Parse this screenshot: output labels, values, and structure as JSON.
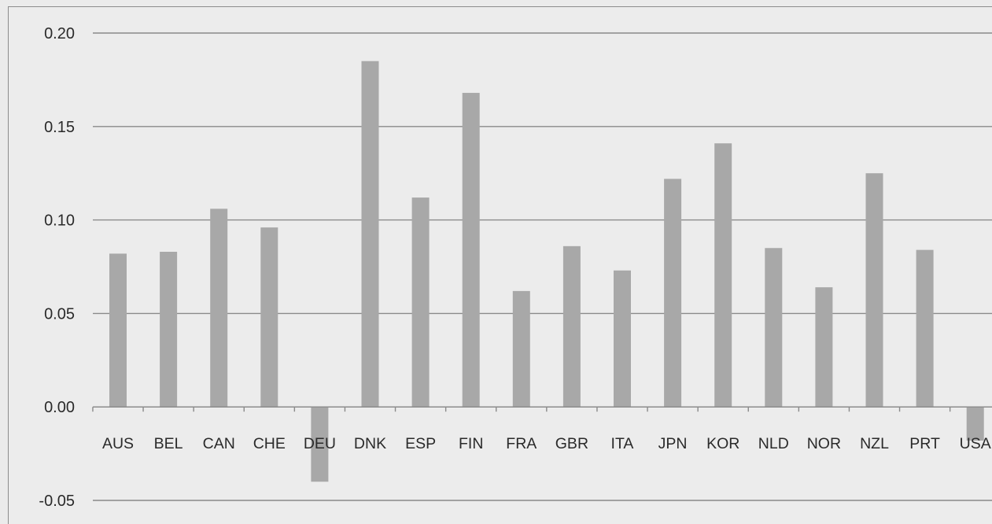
{
  "chart_data": {
    "type": "bar",
    "title": "",
    "xlabel": "",
    "ylabel": "",
    "categories": [
      "AUS",
      "BEL",
      "CAN",
      "CHE",
      "DEU",
      "DNK",
      "ESP",
      "FIN",
      "FRA",
      "GBR",
      "ITA",
      "JPN",
      "KOR",
      "NLD",
      "NOR",
      "NZL",
      "PRT",
      "USA"
    ],
    "values": [
      0.082,
      0.083,
      0.106,
      0.096,
      -0.04,
      0.185,
      0.112,
      0.168,
      0.062,
      0.086,
      0.073,
      0.122,
      0.141,
      0.085,
      0.064,
      0.125,
      0.084,
      -0.018
    ],
    "ylim": [
      -0.05,
      0.2
    ],
    "yticks": [
      "-0.05",
      "0.00",
      "0.05",
      "0.10",
      "0.15",
      "0.20"
    ],
    "grid": true,
    "legend": "none",
    "colors": {
      "bar": "#a8a8a8",
      "gridline": "#8a8a8a",
      "background": "#ececec"
    }
  }
}
